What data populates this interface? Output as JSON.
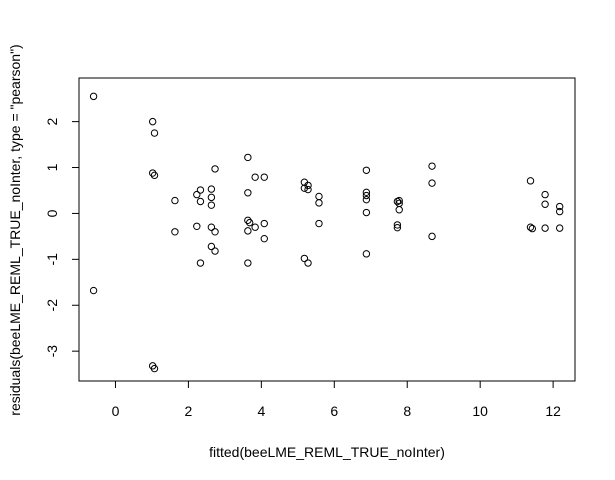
{
  "chart_data": {
    "type": "scatter",
    "title": "",
    "xlabel": "fitted(beeLME_REML_TRUE_noInter)",
    "ylabel": "residuals(beeLME_REML_TRUE_noInter, type = \"pearson\")",
    "xlim": [
      -1.0,
      12.6
    ],
    "ylim": [
      -3.65,
      2.95
    ],
    "xticks": [
      0,
      2,
      4,
      6,
      8,
      10,
      12
    ],
    "yticks": [
      -3,
      -2,
      -1,
      0,
      1,
      2
    ],
    "grid": false,
    "legend": "none",
    "marker": "open-circle",
    "points": [
      {
        "x": -0.6,
        "y": 2.55
      },
      {
        "x": -0.6,
        "y": -1.68
      },
      {
        "x": 1.02,
        "y": 2.0
      },
      {
        "x": 1.07,
        "y": 1.75
      },
      {
        "x": 1.02,
        "y": 0.88
      },
      {
        "x": 1.07,
        "y": 0.83
      },
      {
        "x": 1.02,
        "y": -3.32
      },
      {
        "x": 1.07,
        "y": -3.38
      },
      {
        "x": 1.63,
        "y": 0.28
      },
      {
        "x": 1.63,
        "y": -0.4
      },
      {
        "x": 2.23,
        "y": 0.41
      },
      {
        "x": 2.33,
        "y": 0.51
      },
      {
        "x": 2.23,
        "y": -0.28
      },
      {
        "x": 2.33,
        "y": 0.26
      },
      {
        "x": 2.33,
        "y": -1.08
      },
      {
        "x": 2.63,
        "y": 0.53
      },
      {
        "x": 2.63,
        "y": 0.35
      },
      {
        "x": 2.63,
        "y": 0.18
      },
      {
        "x": 2.63,
        "y": -0.3
      },
      {
        "x": 2.63,
        "y": -0.72
      },
      {
        "x": 2.73,
        "y": 0.97
      },
      {
        "x": 2.73,
        "y": -0.4
      },
      {
        "x": 2.73,
        "y": -0.82
      },
      {
        "x": 3.63,
        "y": 1.22
      },
      {
        "x": 3.63,
        "y": 0.45
      },
      {
        "x": 3.63,
        "y": -0.15
      },
      {
        "x": 3.68,
        "y": -0.2
      },
      {
        "x": 3.63,
        "y": -0.38
      },
      {
        "x": 3.63,
        "y": -1.08
      },
      {
        "x": 3.83,
        "y": 0.79
      },
      {
        "x": 3.83,
        "y": -0.3
      },
      {
        "x": 4.08,
        "y": 0.79
      },
      {
        "x": 4.08,
        "y": -0.22
      },
      {
        "x": 4.08,
        "y": -0.55
      },
      {
        "x": 5.18,
        "y": 0.68
      },
      {
        "x": 5.18,
        "y": 0.55
      },
      {
        "x": 5.28,
        "y": 0.61
      },
      {
        "x": 5.28,
        "y": 0.52
      },
      {
        "x": 5.18,
        "y": -0.98
      },
      {
        "x": 5.28,
        "y": -1.08
      },
      {
        "x": 5.58,
        "y": 0.37
      },
      {
        "x": 5.58,
        "y": 0.23
      },
      {
        "x": 5.58,
        "y": -0.22
      },
      {
        "x": 6.88,
        "y": 0.94
      },
      {
        "x": 6.88,
        "y": 0.46
      },
      {
        "x": 6.88,
        "y": 0.39
      },
      {
        "x": 6.88,
        "y": 0.3
      },
      {
        "x": 6.88,
        "y": 0.02
      },
      {
        "x": 6.88,
        "y": -0.88
      },
      {
        "x": 7.73,
        "y": 0.26
      },
      {
        "x": 7.78,
        "y": 0.28
      },
      {
        "x": 7.78,
        "y": 0.22
      },
      {
        "x": 7.78,
        "y": 0.08
      },
      {
        "x": 7.73,
        "y": -0.25
      },
      {
        "x": 7.73,
        "y": -0.31
      },
      {
        "x": 8.68,
        "y": 1.03
      },
      {
        "x": 8.68,
        "y": 0.66
      },
      {
        "x": 8.68,
        "y": -0.5
      },
      {
        "x": 11.38,
        "y": 0.71
      },
      {
        "x": 11.38,
        "y": -0.3
      },
      {
        "x": 11.43,
        "y": -0.33
      },
      {
        "x": 11.78,
        "y": 0.41
      },
      {
        "x": 11.78,
        "y": 0.2
      },
      {
        "x": 11.78,
        "y": -0.32
      },
      {
        "x": 12.18,
        "y": 0.15
      },
      {
        "x": 12.18,
        "y": 0.04
      },
      {
        "x": 12.18,
        "y": -0.32
      }
    ]
  }
}
